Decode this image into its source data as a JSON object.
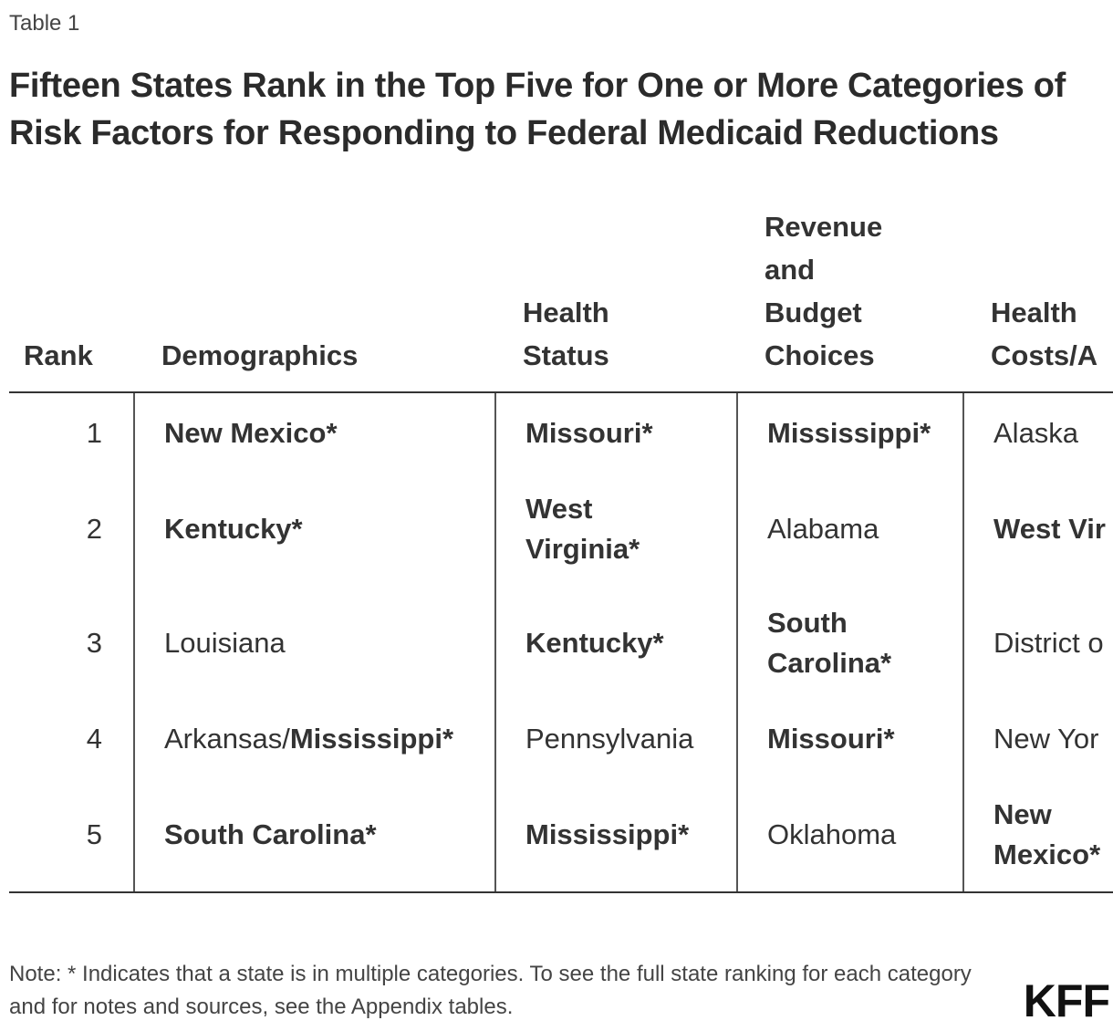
{
  "header": {
    "label": "Table 1",
    "title": "Fifteen States Rank in the Top Five for One or More Categories of Risk Factors for Responding to Federal Medicaid Reductions"
  },
  "table": {
    "columns": [
      "Rank",
      "Demographics",
      "Health Status",
      "Revenue and Budget Choices",
      "Health Costs/A"
    ],
    "rows": [
      [
        [
          {
            "text": "1",
            "bold": false
          }
        ],
        [
          {
            "text": "New Mexico*",
            "bold": true
          }
        ],
        [
          {
            "text": "Missouri*",
            "bold": true
          }
        ],
        [
          {
            "text": "Mississippi*",
            "bold": true
          }
        ],
        [
          {
            "text": "Alaska",
            "bold": false
          }
        ]
      ],
      [
        [
          {
            "text": "2",
            "bold": false
          }
        ],
        [
          {
            "text": "Kentucky*",
            "bold": true
          }
        ],
        [
          {
            "text": "West Virginia*",
            "bold": true
          }
        ],
        [
          {
            "text": "Alabama",
            "bold": false
          }
        ],
        [
          {
            "text": "West Vir",
            "bold": true
          }
        ]
      ],
      [
        [
          {
            "text": "3",
            "bold": false
          }
        ],
        [
          {
            "text": "Louisiana",
            "bold": false
          }
        ],
        [
          {
            "text": "Kentucky*",
            "bold": true
          }
        ],
        [
          {
            "text": "South Carolina*",
            "bold": true
          }
        ],
        [
          {
            "text": "District o",
            "bold": false
          }
        ]
      ],
      [
        [
          {
            "text": "4",
            "bold": false
          }
        ],
        [
          {
            "text": "Arkansas/",
            "bold": false
          },
          {
            "text": "Mississippi*",
            "bold": true
          }
        ],
        [
          {
            "text": "Pennsylvania",
            "bold": false
          }
        ],
        [
          {
            "text": "Missouri*",
            "bold": true
          }
        ],
        [
          {
            "text": "New Yor",
            "bold": false
          }
        ]
      ],
      [
        [
          {
            "text": "5",
            "bold": false
          }
        ],
        [
          {
            "text": "South Carolina*",
            "bold": true
          }
        ],
        [
          {
            "text": "Mississippi*",
            "bold": true
          }
        ],
        [
          {
            "text": "Oklahoma",
            "bold": false
          }
        ],
        [
          {
            "text": "New Mexico*",
            "bold": true
          }
        ]
      ]
    ]
  },
  "footer": {
    "note": "Note: * Indicates that a state is in multiple categories. To see the full state ranking for each category and for notes and sources, see the Appendix tables.",
    "logo": "KFF"
  }
}
